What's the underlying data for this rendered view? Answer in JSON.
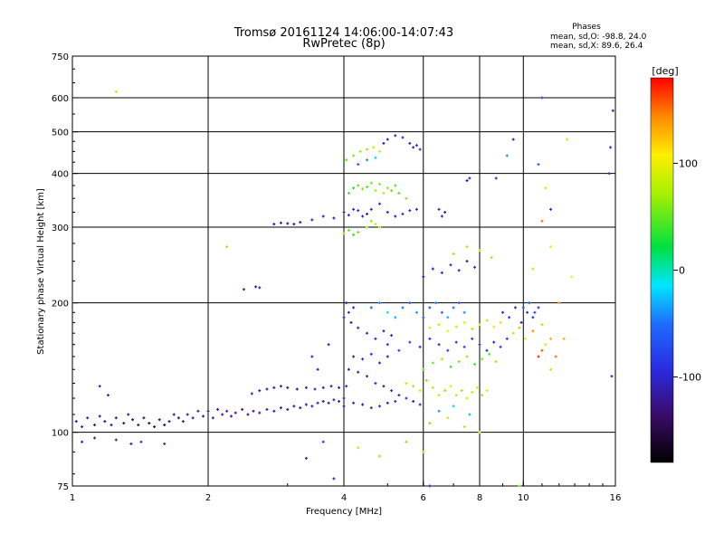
{
  "header": {
    "title_line1": "Tromsø 20161124 14:06:00-14:07:43",
    "title_line2": "RwPretec (8p)"
  },
  "stats": {
    "heading": "Phases",
    "o_line": "mean, sd,O: -98.8, 24.0",
    "x_line": "mean, sd,X:  89.6, 26.4"
  },
  "colorbar": {
    "unit_label": "[deg]",
    "ticks": [
      {
        "value": 100,
        "label": "100"
      },
      {
        "value": 0,
        "label": "0"
      },
      {
        "value": -100,
        "label": "-100"
      }
    ],
    "range": [
      -180,
      180
    ]
  },
  "chart_data": {
    "type": "scatter",
    "xlabel": "Frequency [MHz]",
    "ylabel": "Stationary phase Virtual Height [km]",
    "xscale": "log",
    "yscale": "log",
    "xlim": [
      1,
      16
    ],
    "ylim": [
      75,
      750
    ],
    "grid": true,
    "xticks": [
      {
        "value": 1,
        "label": "1"
      },
      {
        "value": 2,
        "label": "2"
      },
      {
        "value": 4,
        "label": "4"
      },
      {
        "value": 6,
        "label": "6"
      },
      {
        "value": 8,
        "label": "8"
      },
      {
        "value": 10,
        "label": "10"
      },
      {
        "value": 16,
        "label": "16"
      }
    ],
    "yticks": [
      {
        "value": 75,
        "label": "75"
      },
      {
        "value": 100,
        "label": "100"
      },
      {
        "value": 200,
        "label": "200"
      },
      {
        "value": 300,
        "label": "300"
      },
      {
        "value": 400,
        "label": "400"
      },
      {
        "value": 500,
        "label": "500"
      },
      {
        "value": 600,
        "label": "600"
      },
      {
        "value": 750,
        "label": "750"
      }
    ],
    "x_gridlines": [
      2,
      4,
      6,
      8,
      10
    ],
    "y_gridlines": [
      100,
      200,
      300,
      400,
      500,
      600
    ],
    "color_variable": "phase [deg]",
    "points": [
      [
        1.02,
        106,
        -120
      ],
      [
        1.05,
        103,
        -110
      ],
      [
        1.08,
        108,
        -115
      ],
      [
        1.12,
        104,
        -125
      ],
      [
        1.15,
        109,
        -118
      ],
      [
        1.18,
        106,
        -130
      ],
      [
        1.22,
        104,
        -122
      ],
      [
        1.25,
        108,
        -128
      ],
      [
        1.3,
        105,
        -135
      ],
      [
        1.33,
        110,
        -125
      ],
      [
        1.36,
        107,
        -140
      ],
      [
        1.4,
        104,
        -132
      ],
      [
        1.44,
        108,
        -138
      ],
      [
        1.48,
        105,
        -145
      ],
      [
        1.52,
        103,
        -140
      ],
      [
        1.56,
        107,
        -135
      ],
      [
        1.6,
        104,
        -142
      ],
      [
        1.64,
        106,
        -130
      ],
      [
        1.68,
        110,
        -120
      ],
      [
        1.72,
        108,
        -128
      ],
      [
        1.76,
        106,
        -125
      ],
      [
        1.8,
        110,
        -118
      ],
      [
        1.85,
        108,
        -115
      ],
      [
        1.9,
        112,
        -110
      ],
      [
        1.95,
        109,
        -120
      ],
      [
        2.0,
        112,
        -115
      ],
      [
        2.05,
        108,
        -110
      ],
      [
        2.1,
        113,
        -118
      ],
      [
        2.15,
        110,
        -112
      ],
      [
        2.2,
        112,
        -105
      ],
      [
        2.25,
        109,
        -110
      ],
      [
        2.3,
        111,
        -115
      ],
      [
        2.38,
        113,
        -120
      ],
      [
        2.45,
        110,
        -125
      ],
      [
        2.52,
        112,
        -118
      ],
      [
        2.6,
        111,
        -112
      ],
      [
        2.7,
        113,
        -108
      ],
      [
        2.8,
        112,
        -120
      ],
      [
        2.9,
        114,
        -115
      ],
      [
        3.0,
        113,
        -110
      ],
      [
        3.1,
        115,
        -118
      ],
      [
        3.2,
        114,
        -125
      ],
      [
        3.3,
        116,
        -120
      ],
      [
        3.4,
        115,
        -112
      ],
      [
        3.5,
        117,
        -108
      ],
      [
        3.6,
        118,
        -115
      ],
      [
        3.7,
        117,
        -120
      ],
      [
        3.8,
        119,
        -110
      ],
      [
        3.9,
        118,
        -105
      ],
      [
        4.0,
        120,
        -100
      ],
      [
        2.5,
        123,
        -110
      ],
      [
        2.6,
        125,
        -115
      ],
      [
        2.7,
        126,
        -120
      ],
      [
        2.8,
        127,
        -112
      ],
      [
        2.9,
        128,
        -118
      ],
      [
        3.0,
        127,
        -125
      ],
      [
        3.15,
        126,
        -120
      ],
      [
        3.3,
        127,
        -115
      ],
      [
        3.45,
        126,
        -110
      ],
      [
        3.6,
        127,
        -118
      ],
      [
        3.75,
        128,
        -112
      ],
      [
        3.9,
        127,
        -108
      ],
      [
        4.05,
        128,
        -100
      ],
      [
        1.05,
        95,
        -100
      ],
      [
        1.12,
        97,
        -110
      ],
      [
        1.25,
        96,
        -105
      ],
      [
        1.35,
        94,
        -110
      ],
      [
        1.42,
        95,
        -95
      ],
      [
        1.6,
        94,
        -100
      ],
      [
        1.15,
        128,
        -110
      ],
      [
        1.2,
        122,
        -105
      ],
      [
        3.5,
        140,
        -115
      ],
      [
        3.7,
        160,
        -110
      ],
      [
        3.4,
        150,
        -105
      ],
      [
        2.4,
        215,
        -100
      ],
      [
        2.55,
        218,
        -105
      ],
      [
        2.6,
        217,
        -110
      ],
      [
        2.8,
        305,
        -120
      ],
      [
        2.9,
        307,
        -125
      ],
      [
        3.0,
        306,
        -130
      ],
      [
        3.1,
        305,
        -118
      ],
      [
        3.2,
        308,
        -112
      ],
      [
        3.4,
        312,
        -110
      ],
      [
        3.6,
        318,
        -105
      ],
      [
        3.8,
        315,
        -115
      ],
      [
        4.0,
        325,
        -110
      ],
      [
        4.1,
        320,
        -100
      ],
      [
        4.2,
        330,
        -95
      ],
      [
        4.3,
        328,
        -90
      ],
      [
        4.4,
        318,
        -105
      ],
      [
        4.5,
        322,
        -112
      ],
      [
        4.6,
        330,
        -100
      ],
      [
        4.8,
        340,
        -95
      ],
      [
        5.0,
        325,
        -105
      ],
      [
        5.2,
        318,
        -110
      ],
      [
        5.4,
        322,
        -100
      ],
      [
        5.6,
        328,
        -95
      ],
      [
        5.8,
        330,
        -100
      ],
      [
        4.0,
        290,
        60
      ],
      [
        4.1,
        295,
        50
      ],
      [
        4.2,
        288,
        40
      ],
      [
        4.3,
        292,
        55
      ],
      [
        4.5,
        300,
        70
      ],
      [
        4.6,
        310,
        65
      ],
      [
        4.7,
        305,
        75
      ],
      [
        4.8,
        300,
        80
      ],
      [
        4.1,
        360,
        40
      ],
      [
        4.2,
        370,
        30
      ],
      [
        4.3,
        375,
        50
      ],
      [
        4.4,
        368,
        60
      ],
      [
        4.5,
        372,
        45
      ],
      [
        4.6,
        380,
        55
      ],
      [
        4.7,
        365,
        70
      ],
      [
        4.8,
        378,
        65
      ],
      [
        4.9,
        360,
        75
      ],
      [
        5.0,
        370,
        60
      ],
      [
        5.1,
        365,
        55
      ],
      [
        5.2,
        375,
        50
      ],
      [
        5.3,
        360,
        45
      ],
      [
        5.5,
        350,
        60
      ],
      [
        4.05,
        430,
        50
      ],
      [
        4.2,
        440,
        60
      ],
      [
        4.35,
        450,
        70
      ],
      [
        4.5,
        455,
        65
      ],
      [
        4.65,
        460,
        80
      ],
      [
        4.8,
        450,
        90
      ],
      [
        4.9,
        470,
        -110
      ],
      [
        5.0,
        480,
        -115
      ],
      [
        5.2,
        490,
        -100
      ],
      [
        5.4,
        485,
        -95
      ],
      [
        5.6,
        470,
        -105
      ],
      [
        5.7,
        460,
        -110
      ],
      [
        5.8,
        465,
        -100
      ],
      [
        5.9,
        455,
        -90
      ],
      [
        4.3,
        420,
        -60
      ],
      [
        4.5,
        430,
        -40
      ],
      [
        4.7,
        435,
        -20
      ],
      [
        6.5,
        330,
        -100
      ],
      [
        6.7,
        325,
        -110
      ],
      [
        6.6,
        318,
        -105
      ],
      [
        7.5,
        385,
        -120
      ],
      [
        7.6,
        390,
        -110
      ],
      [
        4.0,
        185,
        -110
      ],
      [
        4.1,
        190,
        -105
      ],
      [
        4.2,
        195,
        -100
      ],
      [
        4.05,
        200,
        -115
      ],
      [
        4.15,
        180,
        -120
      ],
      [
        4.3,
        175,
        -100
      ],
      [
        4.5,
        170,
        -95
      ],
      [
        4.7,
        165,
        -105
      ],
      [
        4.9,
        172,
        -110
      ],
      [
        5.1,
        168,
        -100
      ],
      [
        4.2,
        150,
        -110
      ],
      [
        4.4,
        148,
        -100
      ],
      [
        4.6,
        152,
        -95
      ],
      [
        4.8,
        145,
        -105
      ],
      [
        5.0,
        150,
        -110
      ],
      [
        4.1,
        140,
        -115
      ],
      [
        4.3,
        138,
        -105
      ],
      [
        4.5,
        135,
        -100
      ],
      [
        4.7,
        130,
        -95
      ],
      [
        4.9,
        128,
        -110
      ],
      [
        5.1,
        125,
        -100
      ],
      [
        5.3,
        122,
        -105
      ],
      [
        5.5,
        120,
        -95
      ],
      [
        5.7,
        118,
        -110
      ],
      [
        5.9,
        116,
        -100
      ],
      [
        4.0,
        115,
        -120
      ],
      [
        4.2,
        117,
        -110
      ],
      [
        4.4,
        116,
        -115
      ],
      [
        4.6,
        114,
        -100
      ],
      [
        4.8,
        115,
        -105
      ],
      [
        5.0,
        117,
        -110
      ],
      [
        5.2,
        118,
        -95
      ],
      [
        4.6,
        195,
        -60
      ],
      [
        4.8,
        200,
        -40
      ],
      [
        5.0,
        190,
        -20
      ],
      [
        5.2,
        185,
        -30
      ],
      [
        5.4,
        195,
        -50
      ],
      [
        5.6,
        200,
        -60
      ],
      [
        5.8,
        190,
        -40
      ],
      [
        6.0,
        185,
        -55
      ],
      [
        6.2,
        195,
        -70
      ],
      [
        6.4,
        200,
        -45
      ],
      [
        6.6,
        190,
        -60
      ],
      [
        6.8,
        185,
        -30
      ],
      [
        7.0,
        195,
        -50
      ],
      [
        7.2,
        200,
        -65
      ],
      [
        7.4,
        190,
        -40
      ],
      [
        5.0,
        160,
        -90
      ],
      [
        5.3,
        155,
        -80
      ],
      [
        5.6,
        162,
        -85
      ],
      [
        5.9,
        158,
        -95
      ],
      [
        6.2,
        165,
        -90
      ],
      [
        6.5,
        160,
        -100
      ],
      [
        6.8,
        155,
        -85
      ],
      [
        7.1,
        162,
        -95
      ],
      [
        7.4,
        158,
        -80
      ],
      [
        7.7,
        165,
        -90
      ],
      [
        8.0,
        160,
        -85
      ],
      [
        8.3,
        155,
        -95
      ],
      [
        8.6,
        162,
        -100
      ],
      [
        8.9,
        158,
        -90
      ],
      [
        9.2,
        165,
        -85
      ],
      [
        5.5,
        130,
        80
      ],
      [
        5.7,
        128,
        70
      ],
      [
        5.9,
        125,
        90
      ],
      [
        6.1,
        132,
        60
      ],
      [
        6.3,
        127,
        75
      ],
      [
        6.5,
        122,
        85
      ],
      [
        6.7,
        125,
        70
      ],
      [
        6.9,
        128,
        95
      ],
      [
        7.1,
        122,
        80
      ],
      [
        7.3,
        125,
        65
      ],
      [
        7.5,
        120,
        90
      ],
      [
        7.7,
        124,
        75
      ],
      [
        7.9,
        127,
        85
      ],
      [
        8.1,
        122,
        70
      ],
      [
        8.3,
        125,
        95
      ],
      [
        6.0,
        140,
        60
      ],
      [
        6.3,
        145,
        50
      ],
      [
        6.6,
        148,
        70
      ],
      [
        6.9,
        142,
        40
      ],
      [
        7.2,
        146,
        55
      ],
      [
        7.5,
        150,
        65
      ],
      [
        7.8,
        144,
        45
      ],
      [
        8.1,
        148,
        60
      ],
      [
        8.4,
        152,
        50
      ],
      [
        8.7,
        146,
        70
      ],
      [
        6.2,
        175,
        90
      ],
      [
        6.5,
        178,
        80
      ],
      [
        6.8,
        172,
        100
      ],
      [
        7.1,
        176,
        85
      ],
      [
        7.4,
        180,
        95
      ],
      [
        7.7,
        174,
        70
      ],
      [
        8.0,
        178,
        90
      ],
      [
        8.3,
        182,
        80
      ],
      [
        8.6,
        176,
        100
      ],
      [
        8.9,
        180,
        85
      ],
      [
        9.0,
        190,
        -100
      ],
      [
        9.3,
        185,
        -95
      ],
      [
        9.6,
        195,
        -105
      ],
      [
        9.9,
        180,
        -110
      ],
      [
        10.2,
        190,
        -100
      ],
      [
        10.5,
        185,
        -95
      ],
      [
        10.8,
        195,
        -90
      ],
      [
        9.5,
        170,
        120
      ],
      [
        9.8,
        175,
        130
      ],
      [
        10.1,
        165,
        110
      ],
      [
        10.5,
        172,
        140
      ],
      [
        11.0,
        178,
        125
      ],
      [
        11.2,
        160,
        115
      ],
      [
        11.5,
        165,
        130
      ],
      [
        10.0,
        195,
        -70
      ],
      [
        10.3,
        200,
        -60
      ],
      [
        10.6,
        190,
        -80
      ],
      [
        6.0,
        230,
        -100
      ],
      [
        6.3,
        240,
        -110
      ],
      [
        6.6,
        235,
        -95
      ],
      [
        6.9,
        245,
        -105
      ],
      [
        7.2,
        238,
        -100
      ],
      [
        7.5,
        250,
        -110
      ],
      [
        7.8,
        242,
        -95
      ],
      [
        7.0,
        260,
        60
      ],
      [
        7.5,
        270,
        70
      ],
      [
        8.0,
        265,
        80
      ],
      [
        8.5,
        255,
        65
      ],
      [
        6.2,
        105,
        60
      ],
      [
        6.8,
        108,
        80
      ],
      [
        7.4,
        103,
        70
      ],
      [
        8.0,
        100,
        90
      ],
      [
        6.5,
        112,
        -40
      ],
      [
        7.0,
        115,
        -20
      ],
      [
        7.6,
        110,
        -30
      ],
      [
        4.3,
        92,
        80
      ],
      [
        4.8,
        88,
        70
      ],
      [
        5.5,
        95,
        60
      ],
      [
        6.0,
        90,
        85
      ],
      [
        3.3,
        87,
        -110
      ],
      [
        3.6,
        95,
        -90
      ],
      [
        3.8,
        78,
        -110
      ],
      [
        1.25,
        620,
        80
      ],
      [
        2.2,
        270,
        70
      ],
      [
        8.7,
        390,
        -100
      ],
      [
        9.5,
        480,
        -110
      ],
      [
        11.0,
        600,
        -90
      ],
      [
        12.5,
        480,
        120
      ],
      [
        11.2,
        370,
        90
      ],
      [
        11.5,
        330,
        -100
      ],
      [
        10.5,
        240,
        120
      ],
      [
        11.5,
        270,
        100
      ],
      [
        11.0,
        310,
        150
      ],
      [
        12.0,
        200,
        140
      ],
      [
        12.3,
        165,
        130
      ],
      [
        12.8,
        230,
        110
      ],
      [
        9.2,
        440,
        -40
      ],
      [
        10.8,
        420,
        -60
      ],
      [
        15.5,
        400,
        -100
      ],
      [
        15.8,
        560,
        -110
      ],
      [
        15.6,
        460,
        -90
      ],
      [
        15.7,
        135,
        -100
      ],
      [
        11.5,
        140,
        120
      ],
      [
        11.8,
        150,
        150
      ],
      [
        10.8,
        150,
        170
      ],
      [
        11.0,
        155,
        160
      ],
      [
        9.8,
        75,
        60
      ],
      [
        6.2,
        75,
        -110
      ]
    ]
  }
}
